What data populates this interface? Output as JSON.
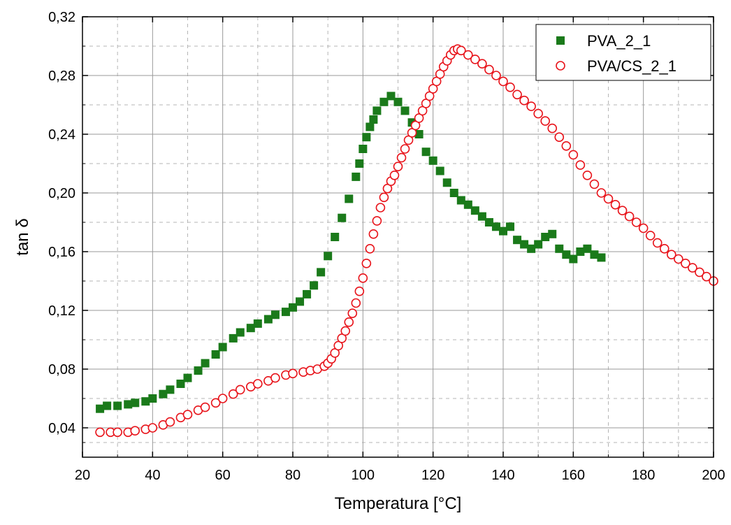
{
  "chart_data": {
    "type": "scatter",
    "xlabel": "Temperatura [°C]",
    "ylabel": "tan δ",
    "xlim": [
      20,
      200
    ],
    "ylim": [
      0.02,
      0.32
    ],
    "x_ticks": [
      20,
      40,
      60,
      80,
      100,
      120,
      140,
      160,
      180,
      200
    ],
    "x_tick_labels": [
      "20",
      "40",
      "60",
      "80",
      "100",
      "120",
      "140",
      "160",
      "180",
      "200"
    ],
    "y_ticks": [
      0.04,
      0.08,
      0.12,
      0.16,
      0.2,
      0.24,
      0.28,
      0.32
    ],
    "y_tick_labels": [
      "0,04",
      "0,08",
      "0,12",
      "0,16",
      "0,20",
      "0,24",
      "0,28",
      "0,32"
    ],
    "grid": true,
    "legend_position": "top-right",
    "colors": {
      "PVA_2_1": "#1a7a1a",
      "PVA/CS_2_1": "#e8141b"
    },
    "series": [
      {
        "name": "PVA_2_1",
        "marker": "filled-square",
        "x": [
          25,
          27,
          30,
          33,
          35,
          38,
          40,
          43,
          45,
          48,
          50,
          53,
          55,
          58,
          60,
          63,
          65,
          68,
          70,
          73,
          75,
          78,
          80,
          82,
          84,
          86,
          88,
          90,
          92,
          94,
          96,
          98,
          99,
          100,
          101,
          102,
          103,
          104,
          106,
          108,
          110,
          112,
          114,
          116,
          118,
          120,
          122,
          124,
          126,
          128,
          130,
          132,
          134,
          136,
          138,
          140,
          142,
          144,
          146,
          148,
          150,
          152,
          154,
          156,
          158,
          160,
          162,
          164,
          166,
          168
        ],
        "y": [
          0.053,
          0.055,
          0.055,
          0.056,
          0.057,
          0.058,
          0.06,
          0.063,
          0.066,
          0.07,
          0.074,
          0.079,
          0.084,
          0.09,
          0.095,
          0.101,
          0.105,
          0.108,
          0.111,
          0.114,
          0.117,
          0.119,
          0.122,
          0.126,
          0.131,
          0.137,
          0.146,
          0.157,
          0.17,
          0.183,
          0.196,
          0.211,
          0.22,
          0.23,
          0.238,
          0.245,
          0.25,
          0.256,
          0.262,
          0.266,
          0.262,
          0.256,
          0.248,
          0.24,
          0.228,
          0.222,
          0.215,
          0.207,
          0.2,
          0.195,
          0.192,
          0.188,
          0.184,
          0.18,
          0.177,
          0.174,
          0.177,
          0.168,
          0.165,
          0.162,
          0.165,
          0.17,
          0.172,
          0.162,
          0.158,
          0.155,
          0.16,
          0.162,
          0.158,
          0.156
        ]
      },
      {
        "name": "PVA/CS_2_1",
        "marker": "open-circle",
        "x": [
          25,
          28,
          30,
          33,
          35,
          38,
          40,
          43,
          45,
          48,
          50,
          53,
          55,
          58,
          60,
          63,
          65,
          68,
          70,
          73,
          75,
          78,
          80,
          83,
          85,
          87,
          89,
          90,
          91,
          92,
          93,
          94,
          95,
          96,
          97,
          98,
          99,
          100,
          101,
          102,
          103,
          104,
          105,
          106,
          107,
          108,
          109,
          110,
          111,
          112,
          113,
          114,
          115,
          116,
          117,
          118,
          119,
          120,
          121,
          122,
          123,
          124,
          125,
          126,
          127,
          128,
          130,
          132,
          134,
          136,
          138,
          140,
          142,
          144,
          146,
          148,
          150,
          152,
          154,
          156,
          158,
          160,
          162,
          164,
          166,
          168,
          170,
          172,
          174,
          176,
          178,
          180,
          182,
          184,
          186,
          188,
          190,
          192,
          194,
          196,
          198,
          200
        ],
        "y": [
          0.037,
          0.037,
          0.037,
          0.037,
          0.038,
          0.039,
          0.04,
          0.042,
          0.044,
          0.047,
          0.049,
          0.052,
          0.054,
          0.057,
          0.06,
          0.063,
          0.066,
          0.068,
          0.07,
          0.072,
          0.074,
          0.076,
          0.077,
          0.078,
          0.079,
          0.08,
          0.082,
          0.084,
          0.087,
          0.091,
          0.096,
          0.101,
          0.106,
          0.112,
          0.118,
          0.125,
          0.133,
          0.142,
          0.152,
          0.162,
          0.172,
          0.181,
          0.19,
          0.197,
          0.203,
          0.208,
          0.212,
          0.218,
          0.224,
          0.23,
          0.236,
          0.241,
          0.246,
          0.251,
          0.256,
          0.261,
          0.266,
          0.271,
          0.276,
          0.281,
          0.286,
          0.29,
          0.294,
          0.297,
          0.298,
          0.297,
          0.294,
          0.291,
          0.288,
          0.284,
          0.28,
          0.276,
          0.272,
          0.267,
          0.263,
          0.259,
          0.254,
          0.249,
          0.244,
          0.238,
          0.232,
          0.226,
          0.219,
          0.212,
          0.206,
          0.2,
          0.196,
          0.192,
          0.188,
          0.184,
          0.18,
          0.176,
          0.171,
          0.166,
          0.162,
          0.158,
          0.155,
          0.152,
          0.149,
          0.146,
          0.143,
          0.14
        ]
      }
    ]
  }
}
